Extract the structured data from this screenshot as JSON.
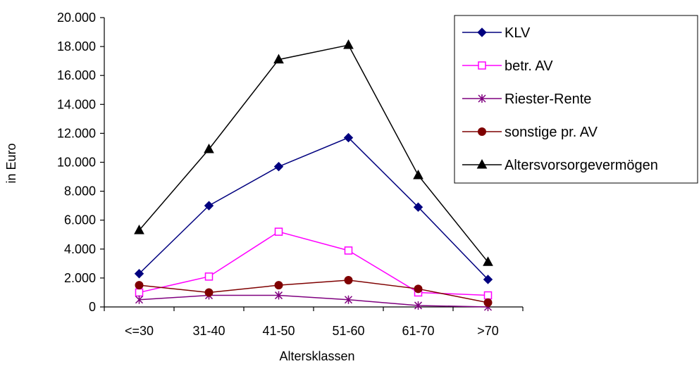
{
  "chart_data": {
    "type": "line",
    "xlabel": "Altersklassen",
    "ylabel": "in Euro",
    "categories": [
      "<=30",
      "31-40",
      "41-50",
      "51-60",
      "61-70",
      ">70"
    ],
    "ylim": [
      0,
      20000
    ],
    "yticks": [
      0,
      2000,
      4000,
      6000,
      8000,
      10000,
      12000,
      14000,
      16000,
      18000,
      20000
    ],
    "ytick_labels": [
      "0",
      "2.000",
      "4.000",
      "6.000",
      "8.000",
      "10.000",
      "12.000",
      "14.000",
      "16.000",
      "18.000",
      "20.000"
    ],
    "grid": false,
    "legend_position": "top-right",
    "series": [
      {
        "name": "KLV",
        "color": "#00007f",
        "marker": "diamond",
        "values": [
          2300,
          7000,
          9700,
          11700,
          6900,
          1900
        ]
      },
      {
        "name": "betr. AV",
        "color": "#ff00ff",
        "marker": "square-open",
        "values": [
          1000,
          2100,
          5200,
          3900,
          1000,
          800
        ]
      },
      {
        "name": "Riester-Rente",
        "color": "#7f007f",
        "marker": "star",
        "values": [
          500,
          800,
          800,
          500,
          100,
          0
        ]
      },
      {
        "name": "sonstige pr. AV",
        "color": "#7f0000",
        "marker": "circle",
        "values": [
          1500,
          1000,
          1500,
          1850,
          1250,
          300
        ]
      },
      {
        "name": "Altersvorsorgevermögen",
        "color": "#000000",
        "marker": "triangle",
        "values": [
          5300,
          10900,
          17100,
          18100,
          9100,
          3100
        ]
      }
    ]
  }
}
